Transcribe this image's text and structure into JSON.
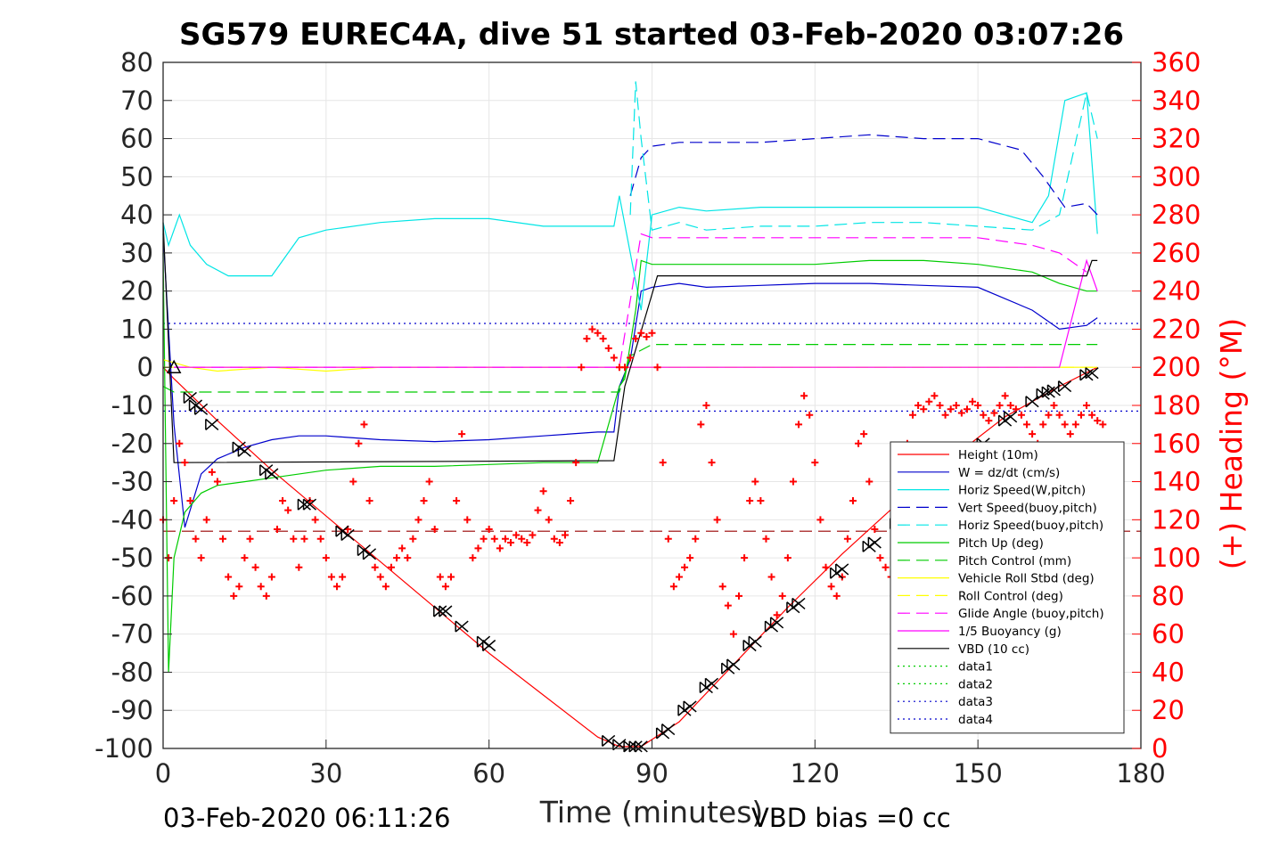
{
  "chart_data": {
    "type": "line",
    "title": "SG579 EUREC4A, dive 51 started 03-Feb-2020 03:07:26",
    "xlabel": "Time (minutes)",
    "ylabel_right": "(+) Heading (°M)",
    "xlim": [
      0,
      180
    ],
    "ylim": [
      -100,
      80
    ],
    "ylim_right": [
      0,
      360
    ],
    "x_ticks": [
      "0",
      "30",
      "60",
      "90",
      "120",
      "150",
      "180"
    ],
    "y_ticks": [
      "80",
      "70",
      "60",
      "50",
      "40",
      "30",
      "20",
      "10",
      "0",
      "-10",
      "-20",
      "-30",
      "-40",
      "-50",
      "-60",
      "-70",
      "-80",
      "-90",
      "-100"
    ],
    "y_ticks_right": [
      "360",
      "340",
      "320",
      "300",
      "280",
      "260",
      "240",
      "220",
      "200",
      "180",
      "160",
      "140",
      "120",
      "100",
      "80",
      "60",
      "40",
      "20",
      "0"
    ],
    "footer_left": "03-Feb-2020 06:11:26",
    "footer_right": "VBD bias =0 cc",
    "grid": true,
    "legend_position": "lower-right",
    "series": [
      {
        "name": "Height (10m)",
        "color": "#ff0000",
        "style": "solid",
        "x": [
          0,
          2,
          10,
          20,
          30,
          40,
          50,
          60,
          70,
          80,
          84,
          88,
          95,
          105,
          115,
          125,
          135,
          145,
          155,
          165,
          172
        ],
        "y": [
          0,
          -3,
          -14,
          -27,
          -39,
          -51,
          -63,
          -75,
          -86,
          -97,
          -99.5,
          -99.5,
          -93,
          -78,
          -63,
          -49,
          -36,
          -24,
          -13,
          -5,
          0
        ]
      },
      {
        "name": "W = dz/dt (cm/s)",
        "color": "#0000cc",
        "style": "solid",
        "x": [
          0,
          2,
          4,
          7,
          10,
          15,
          20,
          25,
          30,
          40,
          50,
          60,
          70,
          80,
          83,
          84,
          86,
          88,
          90,
          95,
          100,
          110,
          120,
          130,
          140,
          150,
          160,
          165,
          170,
          172
        ],
        "y": [
          35,
          -15,
          -42,
          -28,
          -24,
          -21,
          -19,
          -18,
          -18,
          -19,
          -19.5,
          -19,
          -18,
          -17,
          -17,
          -5,
          2,
          20,
          21,
          22,
          21,
          21.5,
          22,
          22,
          21.5,
          21,
          15,
          10,
          11,
          13
        ]
      },
      {
        "name": "Horiz Speed(W,pitch)",
        "color": "#00e5e5",
        "style": "solid",
        "x": [
          0,
          1,
          3,
          5,
          8,
          12,
          15,
          20,
          25,
          30,
          40,
          50,
          60,
          70,
          80,
          83,
          84,
          86,
          88,
          90,
          95,
          100,
          110,
          120,
          130,
          140,
          150,
          160,
          163,
          166,
          170,
          172
        ],
        "y": [
          38,
          32,
          40,
          32,
          27,
          24,
          24,
          24,
          34,
          36,
          38,
          39,
          39,
          37,
          37,
          37,
          45,
          30,
          15,
          40,
          42,
          41,
          42,
          42,
          42,
          42,
          42,
          38,
          45,
          70,
          72,
          35
        ]
      },
      {
        "name": "Vert Speed(buoy,pitch)",
        "color": "#0000cc",
        "style": "dashed",
        "x": [
          86,
          88,
          90,
          95,
          100,
          110,
          120,
          130,
          140,
          150,
          158,
          162,
          166,
          170,
          172
        ],
        "y": [
          45,
          55,
          58,
          59,
          59,
          59,
          60,
          61,
          60,
          60,
          57,
          50,
          42,
          43,
          40
        ]
      },
      {
        "name": "Horiz Speed(buoy,pitch)",
        "color": "#00e5e5",
        "style": "dashed",
        "x": [
          86,
          87,
          88,
          90,
          95,
          100,
          110,
          120,
          130,
          140,
          150,
          160,
          165,
          170,
          172
        ],
        "y": [
          40,
          75,
          60,
          36,
          38,
          36,
          37,
          37,
          38,
          38,
          37,
          36,
          40,
          72,
          60
        ]
      },
      {
        "name": "Pitch Up (deg)",
        "color": "#00cc00",
        "style": "solid",
        "x": [
          0,
          1,
          2,
          4,
          7,
          10,
          15,
          20,
          30,
          40,
          50,
          60,
          70,
          80,
          84,
          85,
          87,
          88,
          90,
          100,
          110,
          120,
          130,
          140,
          150,
          160,
          165,
          170,
          172
        ],
        "y": [
          30,
          -80,
          -50,
          -38,
          -33,
          -31,
          -30,
          -29,
          -27,
          -26,
          -26,
          -25.5,
          -25,
          -25,
          -5,
          -3,
          15,
          28,
          27,
          27,
          27,
          27,
          28,
          28,
          27,
          25,
          22,
          20,
          20
        ]
      },
      {
        "name": "Pitch Control (mm)",
        "color": "#00cc00",
        "style": "dashed",
        "x": [
          0,
          2,
          84,
          86,
          90,
          172
        ],
        "y": [
          -5,
          -6.5,
          -6.5,
          3,
          6,
          6
        ]
      },
      {
        "name": "Vehicle Roll Stbd (deg)",
        "color": "#ffff00",
        "style": "solid",
        "x": [
          0,
          5,
          10,
          20,
          30,
          40,
          50,
          60,
          70,
          80,
          86,
          90,
          100,
          110,
          120,
          130,
          140,
          150,
          160,
          170,
          172
        ],
        "y": [
          2,
          0,
          -1,
          0,
          -1,
          0,
          0,
          0,
          0,
          0,
          0,
          0,
          0,
          0,
          0,
          0,
          0,
          0,
          0,
          0,
          0
        ]
      },
      {
        "name": "Roll Control (deg)",
        "color": "#ffff00",
        "style": "dashed",
        "x": [
          0,
          172
        ],
        "y": [
          0,
          0
        ]
      },
      {
        "name": "Glide Angle (buoy,pitch)",
        "color": "#ff00ff",
        "style": "dashed",
        "x": [
          2,
          84,
          88,
          90,
          100,
          110,
          120,
          130,
          140,
          150,
          160,
          165,
          170
        ],
        "y": [
          0,
          0,
          35,
          34,
          34,
          34,
          34,
          34,
          34,
          34,
          32,
          30,
          25
        ]
      },
      {
        "name": "1/5 Buoyancy (g)",
        "color": "#ff00ff",
        "style": "solid",
        "x": [
          2,
          84,
          165,
          170,
          172
        ],
        "y": [
          0,
          0,
          0,
          28,
          20
        ]
      },
      {
        "name": "VBD (10 cc)",
        "color": "#000000",
        "style": "solid",
        "x": [
          0,
          2,
          83,
          85,
          91,
          170,
          171,
          172
        ],
        "y": [
          38,
          -25,
          -24.5,
          -5,
          24,
          24,
          28,
          28
        ]
      },
      {
        "name": "data1",
        "color": "#00cc00",
        "style": "dotted",
        "x": [],
        "y": []
      },
      {
        "name": "data2",
        "color": "#00cc00",
        "style": "dotted",
        "x": [],
        "y": []
      },
      {
        "name": "data3",
        "color": "#0000cc",
        "style": "dotted",
        "x": [
          0,
          180
        ],
        "y": [
          11.5,
          11.5
        ]
      },
      {
        "name": "data4",
        "color": "#0000cc",
        "style": "dotted",
        "x": [
          0,
          180
        ],
        "y": [
          -11.5,
          -11.5
        ]
      },
      {
        "name": "",
        "color": "#990000",
        "style": "dashed",
        "x": [
          0,
          180
        ],
        "y": [
          -43,
          -43
        ]
      }
    ],
    "heading": {
      "axis": "right",
      "color": "#ff0000",
      "marker": "+",
      "x": [
        0,
        1,
        2,
        3,
        4,
        5,
        6,
        7,
        8,
        9,
        10,
        11,
        12,
        13,
        14,
        15,
        16,
        17,
        18,
        19,
        20,
        21,
        22,
        23,
        24,
        25,
        26,
        27,
        28,
        29,
        30,
        31,
        32,
        33,
        34,
        35,
        36,
        37,
        38,
        39,
        40,
        41,
        42,
        43,
        44,
        45,
        46,
        47,
        48,
        49,
        50,
        51,
        52,
        53,
        54,
        55,
        56,
        57,
        58,
        59,
        60,
        61,
        62,
        63,
        64,
        65,
        66,
        67,
        68,
        69,
        70,
        71,
        72,
        73,
        74,
        75,
        76,
        77,
        78,
        79,
        80,
        81,
        82,
        83,
        84,
        85,
        86,
        87,
        88,
        89,
        90,
        91,
        92,
        93,
        94,
        95,
        96,
        97,
        98,
        99,
        100,
        101,
        102,
        103,
        104,
        105,
        106,
        107,
        108,
        109,
        110,
        111,
        112,
        113,
        114,
        115,
        116,
        117,
        118,
        119,
        120,
        121,
        122,
        123,
        124,
        125,
        126,
        127,
        128,
        129,
        130,
        131,
        132,
        133,
        134,
        135,
        136,
        137,
        138,
        139,
        140,
        141,
        142,
        143,
        144,
        145,
        146,
        147,
        148,
        149,
        150,
        151,
        152,
        153,
        154,
        155,
        156,
        157,
        158,
        159,
        160,
        161,
        162,
        163,
        164,
        165,
        166,
        167,
        168,
        169,
        170,
        171,
        172,
        173
      ],
      "y": [
        120,
        100,
        130,
        160,
        150,
        130,
        110,
        100,
        120,
        145,
        140,
        110,
        90,
        80,
        85,
        100,
        110,
        95,
        85,
        80,
        90,
        115,
        130,
        125,
        110,
        95,
        110,
        130,
        120,
        110,
        100,
        90,
        85,
        90,
        115,
        140,
        160,
        170,
        130,
        95,
        90,
        85,
        95,
        100,
        105,
        100,
        110,
        120,
        130,
        140,
        115,
        90,
        85,
        90,
        130,
        165,
        120,
        100,
        105,
        110,
        115,
        110,
        105,
        110,
        108,
        112,
        110,
        108,
        112,
        125,
        135,
        120,
        110,
        108,
        112,
        130,
        150,
        200,
        215,
        220,
        218,
        215,
        210,
        205,
        200,
        200,
        205,
        215,
        218,
        216,
        218,
        200,
        150,
        110,
        85,
        90,
        95,
        100,
        110,
        170,
        180,
        150,
        120,
        85,
        75,
        60,
        80,
        100,
        130,
        140,
        130,
        110,
        90,
        70,
        80,
        100,
        140,
        170,
        185,
        175,
        150,
        120,
        95,
        85,
        80,
        90,
        110,
        130,
        160,
        165,
        140,
        115,
        100,
        95,
        90,
        100,
        130,
        160,
        175,
        180,
        178,
        182,
        185,
        180,
        175,
        178,
        180,
        176,
        178,
        182,
        180,
        175,
        172,
        176,
        180,
        185,
        180,
        178,
        175,
        170,
        165,
        160,
        170,
        175,
        180,
        175,
        170,
        165,
        170,
        175,
        180,
        175,
        172,
        170
      ]
    },
    "markers": {
      "color": "#000000",
      "x": [
        2,
        5,
        6,
        7,
        9,
        14,
        15,
        19,
        20,
        26,
        27,
        33,
        34,
        37,
        38,
        51,
        52,
        55,
        59,
        60,
        82,
        84,
        86,
        87,
        88,
        92,
        93,
        96,
        97,
        100,
        101,
        104,
        105,
        108,
        109,
        112,
        113,
        116,
        117,
        124,
        125,
        130,
        131,
        135,
        136,
        140,
        141,
        145,
        146,
        150,
        151,
        155,
        156,
        160,
        162,
        163,
        164,
        166,
        170,
        171
      ],
      "y": [
        0,
        -8,
        -10,
        -11,
        -15,
        -21,
        -22,
        -27,
        -28,
        -36,
        -36,
        -43,
        -44,
        -48,
        -49,
        -64,
        -64,
        -68,
        -72,
        -73,
        -98,
        -99,
        -99.5,
        -99.5,
        -99.5,
        -96,
        -95,
        -90,
        -89,
        -84,
        -83,
        -79,
        -78,
        -73,
        -72,
        -68,
        -67,
        -63,
        -62,
        -54,
        -53,
        -47,
        -46,
        -41,
        -40,
        -34,
        -33,
        -28,
        -27,
        -21,
        -20,
        -14,
        -13,
        -9,
        -7,
        -6.5,
        -6,
        -5,
        -2,
        -1.5
      ]
    }
  }
}
